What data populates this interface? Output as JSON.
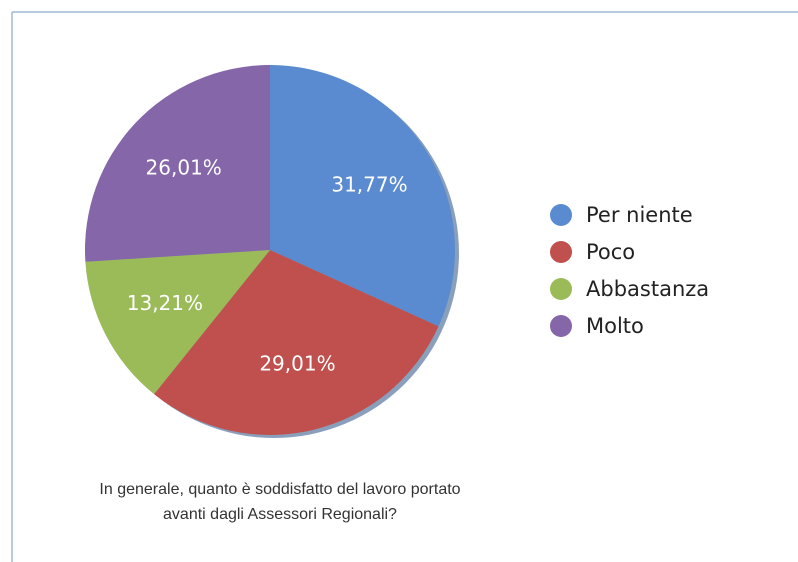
{
  "chart_data": {
    "type": "pie",
    "title": "In generale, quanto è soddisfatto del lavoro portato avanti dagli Assessori Regionali?",
    "categories": [
      "Per niente",
      "Poco",
      "Abbastanza",
      "Molto"
    ],
    "values": [
      31.77,
      29.01,
      13.21,
      26.01
    ],
    "value_labels": [
      "31,77%",
      "29,01%",
      "13,21%",
      "26,01%"
    ],
    "colors": [
      "#5a8bd0",
      "#c0504d",
      "#9bbb59",
      "#8566a8"
    ],
    "legend": "right"
  }
}
